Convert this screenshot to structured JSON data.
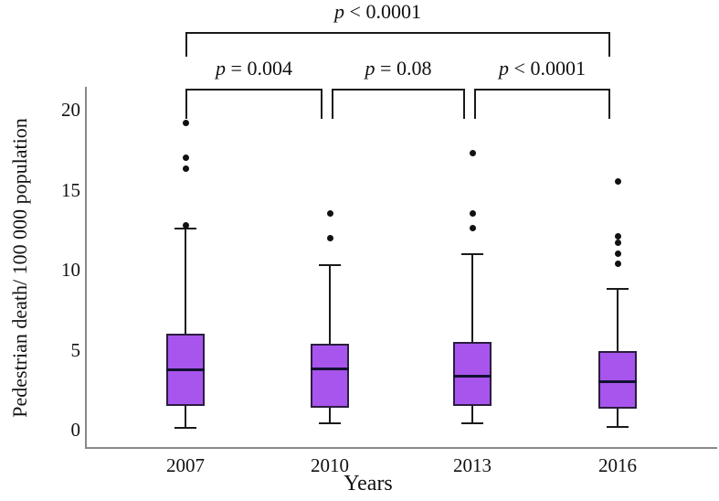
{
  "chart_data": {
    "type": "box",
    "title": "",
    "ylabel": "Pedestrian death/ 100 000 population",
    "xlabel": "Years",
    "categories": [
      "2007",
      "2010",
      "2013",
      "2016"
    ],
    "yticks": [
      0,
      5,
      10,
      15,
      20
    ],
    "ylim": [
      0,
      21.4
    ],
    "grid": false,
    "legend": "none",
    "box_fill_color": "#a855ed",
    "box_border_color": "#2b1d3f",
    "median_color": "#121230",
    "whisker_color": "#1a1a1a",
    "axis_color": "#8a8a8a",
    "series": [
      {
        "category": "2007",
        "whisker_low": 0.1,
        "q1": 1.5,
        "median": 3.7,
        "q3": 6.0,
        "whisker_high": 12.6,
        "outliers": [
          12.8,
          16.3,
          17.0,
          19.2
        ]
      },
      {
        "category": "2010",
        "whisker_low": 0.4,
        "q1": 1.4,
        "median": 3.8,
        "q3": 5.4,
        "whisker_high": 10.3,
        "outliers": [
          12.0,
          13.5
        ]
      },
      {
        "category": "2013",
        "whisker_low": 0.4,
        "q1": 1.5,
        "median": 3.3,
        "q3": 5.5,
        "whisker_high": 11.0,
        "outliers": [
          12.6,
          13.5,
          17.3
        ]
      },
      {
        "category": "2016",
        "whisker_low": 0.2,
        "q1": 1.3,
        "median": 3.0,
        "q3": 4.9,
        "whisker_high": 8.8,
        "outliers": [
          10.4,
          11.0,
          11.7,
          12.1,
          15.5
        ]
      }
    ],
    "comparisons": [
      {
        "label": "p < 0.0001",
        "from": "2007",
        "to": "2016",
        "level": "outer"
      },
      {
        "label": "p = 0.004",
        "from": "2007",
        "to": "2010",
        "level": "inner"
      },
      {
        "label": "p = 0.08",
        "from": "2010",
        "to": "2013",
        "level": "inner"
      },
      {
        "label": "p < 0.0001",
        "from": "2013",
        "to": "2016",
        "level": "inner"
      }
    ]
  }
}
